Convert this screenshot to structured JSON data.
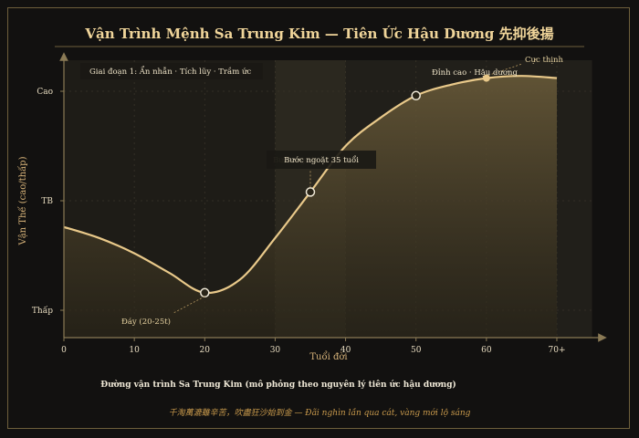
{
  "colors": {
    "background": "#121110",
    "frame": "#6e5f3c",
    "curve": "#e9c98a",
    "title": "#f0d59a",
    "quote": "#c99a4c",
    "axis": "#8a7a55"
  },
  "chart_data": {
    "type": "area",
    "title": "Vận Trình Mệnh Sa Trung Kim — Tiên Ức Hậu Dương 先抑後揚",
    "xlabel": "Tuổi đời",
    "ylabel": "Vận Thế (cao/thấp)",
    "xlim": [
      0,
      75
    ],
    "ylim": [
      0,
      1.15
    ],
    "x_ticks": [
      {
        "value": 0,
        "label": "0"
      },
      {
        "value": 10,
        "label": "10"
      },
      {
        "value": 20,
        "label": "20"
      },
      {
        "value": 30,
        "label": "30"
      },
      {
        "value": 40,
        "label": "40"
      },
      {
        "value": 50,
        "label": "50"
      },
      {
        "value": 60,
        "label": "60"
      },
      {
        "value": 70,
        "label": "70+"
      }
    ],
    "y_ticks": [
      {
        "value": 0.0,
        "label": "Thấp"
      },
      {
        "value": 0.5,
        "label": "TB"
      },
      {
        "value": 1.0,
        "label": "Cao"
      }
    ],
    "grid": true,
    "series": [
      {
        "x": [
          0,
          5,
          10,
          15,
          20,
          25,
          30,
          35,
          40,
          45,
          50,
          55,
          60,
          65,
          70
        ],
        "y": [
          0.38,
          0.33,
          0.26,
          0.17,
          0.08,
          0.14,
          0.33,
          0.54,
          0.75,
          0.88,
          0.98,
          1.03,
          1.06,
          1.07,
          1.06
        ]
      }
    ],
    "bands": [
      {
        "x_start": 0,
        "x_end": 30,
        "label": "Giai đoạn 1: Ẩn nhẫn · Tích lũy · Trầm ức"
      },
      {
        "x_start": 30,
        "x_end": 40,
        "label": "Bước ngoặt 35 tuổi"
      },
      {
        "x_start": 40,
        "x_end": 75,
        "label": "Đỉnh cao · Hậu dương"
      }
    ],
    "points": [
      {
        "x": 20,
        "y": 0.08,
        "label": "Đáy (20-25t)"
      },
      {
        "x": 35,
        "y": 0.54,
        "label": "Bước ngoặt 35 tuổi"
      },
      {
        "x": 50,
        "y": 0.98,
        "label": ""
      },
      {
        "x": 60,
        "y": 1.06,
        "label": "Cực thịnh"
      }
    ]
  },
  "caption": "Đường vận trình Sa Trung Kim (mô phỏng theo nguyên lý tiên ức hậu dương)",
  "quote": "千淘萬漉雖辛苦，吹盡狂沙始到金 — Đãi nghìn lần qua cát, vàng mới lộ sáng"
}
